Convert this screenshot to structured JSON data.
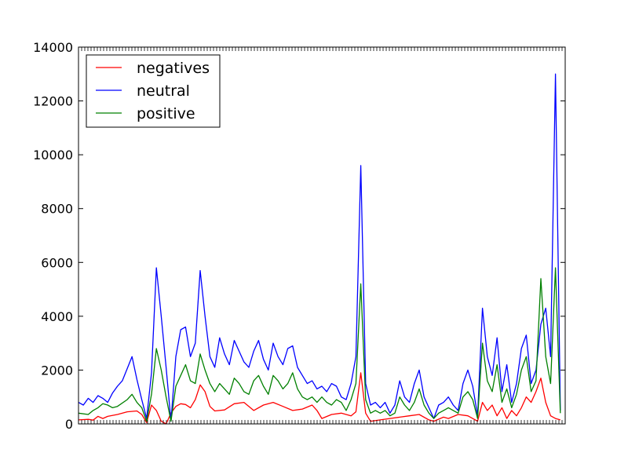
{
  "chart_data": {
    "type": "line",
    "title": "",
    "xlabel": "",
    "ylabel": "",
    "ylim": [
      0,
      14000
    ],
    "yticks": [
      0,
      2000,
      4000,
      6000,
      8000,
      10000,
      12000,
      14000
    ],
    "ytick_labels": [
      "0",
      "2000",
      "4000",
      "6000",
      "8000",
      "10000",
      "12000",
      "14000"
    ],
    "xlim": [
      0,
      100
    ],
    "grid": false,
    "legend_position": "top-left",
    "series": [
      {
        "name": "negatives",
        "color": "#ff0000",
        "points": [
          [
            0,
            150
          ],
          [
            2,
            170
          ],
          [
            3,
            140
          ],
          [
            4,
            280
          ],
          [
            5,
            200
          ],
          [
            6,
            280
          ],
          [
            8,
            350
          ],
          [
            10,
            450
          ],
          [
            12,
            480
          ],
          [
            13,
            350
          ],
          [
            14,
            50
          ],
          [
            15,
            700
          ],
          [
            16,
            500
          ],
          [
            17,
            100
          ],
          [
            18,
            0
          ],
          [
            19,
            400
          ],
          [
            20,
            650
          ],
          [
            21,
            750
          ],
          [
            22,
            720
          ],
          [
            23,
            600
          ],
          [
            24,
            900
          ],
          [
            25,
            1450
          ],
          [
            26,
            1200
          ],
          [
            27,
            650
          ],
          [
            28,
            480
          ],
          [
            30,
            520
          ],
          [
            32,
            750
          ],
          [
            34,
            800
          ],
          [
            35,
            650
          ],
          [
            36,
            500
          ],
          [
            38,
            700
          ],
          [
            40,
            800
          ],
          [
            42,
            650
          ],
          [
            44,
            500
          ],
          [
            46,
            550
          ],
          [
            48,
            700
          ],
          [
            49,
            500
          ],
          [
            50,
            200
          ],
          [
            52,
            350
          ],
          [
            54,
            400
          ],
          [
            56,
            300
          ],
          [
            57,
            450
          ],
          [
            58,
            1900
          ],
          [
            59,
            400
          ],
          [
            60,
            100
          ],
          [
            62,
            150
          ],
          [
            64,
            200
          ],
          [
            66,
            250
          ],
          [
            68,
            300
          ],
          [
            70,
            350
          ],
          [
            72,
            150
          ],
          [
            73,
            100
          ],
          [
            75,
            250
          ],
          [
            76,
            200
          ],
          [
            78,
            350
          ],
          [
            80,
            300
          ],
          [
            82,
            100
          ],
          [
            83,
            800
          ],
          [
            84,
            500
          ],
          [
            85,
            700
          ],
          [
            86,
            300
          ],
          [
            87,
            600
          ],
          [
            88,
            200
          ],
          [
            89,
            500
          ],
          [
            90,
            300
          ],
          [
            91,
            600
          ],
          [
            92,
            1000
          ],
          [
            93,
            800
          ],
          [
            94,
            1200
          ],
          [
            95,
            1700
          ],
          [
            96,
            800
          ],
          [
            97,
            300
          ],
          [
            98,
            200
          ],
          [
            99,
            150
          ]
        ]
      },
      {
        "name": "neutral",
        "color": "#0000ff",
        "points": [
          [
            0,
            800
          ],
          [
            1,
            700
          ],
          [
            2,
            950
          ],
          [
            3,
            800
          ],
          [
            4,
            1050
          ],
          [
            5,
            950
          ],
          [
            6,
            800
          ],
          [
            7,
            1150
          ],
          [
            8,
            1400
          ],
          [
            9,
            1600
          ],
          [
            10,
            2050
          ],
          [
            11,
            2500
          ],
          [
            12,
            1650
          ],
          [
            13,
            900
          ],
          [
            14,
            200
          ],
          [
            15,
            1900
          ],
          [
            16,
            5800
          ],
          [
            17,
            4000
          ],
          [
            18,
            2100
          ],
          [
            19,
            100
          ],
          [
            20,
            2500
          ],
          [
            21,
            3500
          ],
          [
            22,
            3600
          ],
          [
            23,
            2500
          ],
          [
            24,
            3000
          ],
          [
            25,
            5700
          ],
          [
            26,
            4000
          ],
          [
            27,
            2500
          ],
          [
            28,
            2100
          ],
          [
            29,
            3200
          ],
          [
            30,
            2600
          ],
          [
            31,
            2200
          ],
          [
            32,
            3100
          ],
          [
            33,
            2700
          ],
          [
            34,
            2300
          ],
          [
            35,
            2100
          ],
          [
            36,
            2700
          ],
          [
            37,
            3100
          ],
          [
            38,
            2400
          ],
          [
            39,
            2000
          ],
          [
            40,
            3000
          ],
          [
            41,
            2500
          ],
          [
            42,
            2200
          ],
          [
            43,
            2800
          ],
          [
            44,
            2900
          ],
          [
            45,
            2100
          ],
          [
            46,
            1800
          ],
          [
            47,
            1500
          ],
          [
            48,
            1600
          ],
          [
            49,
            1300
          ],
          [
            50,
            1400
          ],
          [
            51,
            1200
          ],
          [
            52,
            1500
          ],
          [
            53,
            1400
          ],
          [
            54,
            1000
          ],
          [
            55,
            900
          ],
          [
            56,
            1500
          ],
          [
            57,
            2500
          ],
          [
            58,
            9600
          ],
          [
            59,
            1500
          ],
          [
            60,
            700
          ],
          [
            61,
            800
          ],
          [
            62,
            600
          ],
          [
            63,
            800
          ],
          [
            64,
            400
          ],
          [
            65,
            700
          ],
          [
            66,
            1600
          ],
          [
            67,
            1000
          ],
          [
            68,
            800
          ],
          [
            69,
            1500
          ],
          [
            70,
            2000
          ],
          [
            71,
            1000
          ],
          [
            72,
            600
          ],
          [
            73,
            200
          ],
          [
            74,
            700
          ],
          [
            75,
            800
          ],
          [
            76,
            1000
          ],
          [
            77,
            700
          ],
          [
            78,
            500
          ],
          [
            79,
            1500
          ],
          [
            80,
            2000
          ],
          [
            81,
            1400
          ],
          [
            82,
            300
          ],
          [
            83,
            4300
          ],
          [
            84,
            2500
          ],
          [
            85,
            1800
          ],
          [
            86,
            3200
          ],
          [
            87,
            1200
          ],
          [
            88,
            2200
          ],
          [
            89,
            800
          ],
          [
            90,
            1500
          ],
          [
            91,
            2800
          ],
          [
            92,
            3300
          ],
          [
            93,
            1500
          ],
          [
            94,
            2000
          ],
          [
            95,
            3700
          ],
          [
            96,
            4300
          ],
          [
            97,
            2500
          ],
          [
            98,
            13000
          ],
          [
            99,
            500
          ]
        ]
      },
      {
        "name": "positive",
        "color": "#008000",
        "points": [
          [
            0,
            400
          ],
          [
            2,
            350
          ],
          [
            3,
            500
          ],
          [
            4,
            600
          ],
          [
            5,
            750
          ],
          [
            6,
            700
          ],
          [
            7,
            600
          ],
          [
            8,
            650
          ],
          [
            10,
            900
          ],
          [
            11,
            1100
          ],
          [
            12,
            800
          ],
          [
            13,
            600
          ],
          [
            14,
            100
          ],
          [
            15,
            1100
          ],
          [
            16,
            2800
          ],
          [
            17,
            2000
          ],
          [
            18,
            1000
          ],
          [
            19,
            100
          ],
          [
            20,
            1400
          ],
          [
            21,
            1800
          ],
          [
            22,
            2200
          ],
          [
            23,
            1600
          ],
          [
            24,
            1500
          ],
          [
            25,
            2600
          ],
          [
            26,
            2000
          ],
          [
            27,
            1500
          ],
          [
            28,
            1200
          ],
          [
            29,
            1500
          ],
          [
            30,
            1300
          ],
          [
            31,
            1100
          ],
          [
            32,
            1700
          ],
          [
            33,
            1500
          ],
          [
            34,
            1200
          ],
          [
            35,
            1100
          ],
          [
            36,
            1600
          ],
          [
            37,
            1800
          ],
          [
            38,
            1400
          ],
          [
            39,
            1100
          ],
          [
            40,
            1800
          ],
          [
            41,
            1600
          ],
          [
            42,
            1300
          ],
          [
            43,
            1500
          ],
          [
            44,
            1900
          ],
          [
            45,
            1300
          ],
          [
            46,
            1000
          ],
          [
            47,
            900
          ],
          [
            48,
            1000
          ],
          [
            49,
            800
          ],
          [
            50,
            1000
          ],
          [
            51,
            800
          ],
          [
            52,
            700
          ],
          [
            53,
            900
          ],
          [
            54,
            800
          ],
          [
            55,
            500
          ],
          [
            56,
            900
          ],
          [
            57,
            1500
          ],
          [
            58,
            5200
          ],
          [
            59,
            900
          ],
          [
            60,
            400
          ],
          [
            61,
            500
          ],
          [
            62,
            400
          ],
          [
            63,
            500
          ],
          [
            64,
            300
          ],
          [
            65,
            400
          ],
          [
            66,
            1000
          ],
          [
            67,
            700
          ],
          [
            68,
            500
          ],
          [
            69,
            800
          ],
          [
            70,
            1300
          ],
          [
            71,
            700
          ],
          [
            72,
            400
          ],
          [
            73,
            200
          ],
          [
            74,
            400
          ],
          [
            75,
            500
          ],
          [
            76,
            600
          ],
          [
            77,
            500
          ],
          [
            78,
            400
          ],
          [
            79,
            1000
          ],
          [
            80,
            1200
          ],
          [
            81,
            900
          ],
          [
            82,
            200
          ],
          [
            83,
            3000
          ],
          [
            84,
            1600
          ],
          [
            85,
            1200
          ],
          [
            86,
            2200
          ],
          [
            87,
            800
          ],
          [
            88,
            1300
          ],
          [
            89,
            600
          ],
          [
            90,
            1100
          ],
          [
            91,
            2000
          ],
          [
            92,
            2500
          ],
          [
            93,
            1200
          ],
          [
            94,
            1600
          ],
          [
            95,
            5400
          ],
          [
            96,
            2500
          ],
          [
            97,
            1500
          ],
          [
            98,
            5800
          ],
          [
            99,
            400
          ]
        ]
      }
    ]
  }
}
